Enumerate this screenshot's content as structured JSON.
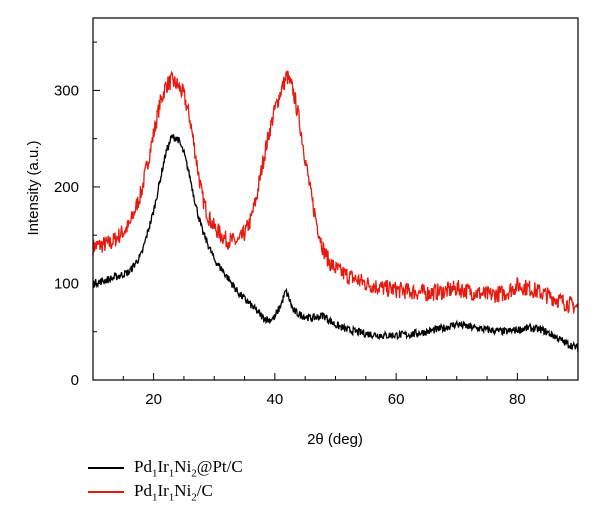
{
  "chart_data": {
    "type": "line",
    "title": "",
    "xlabel": "2θ (deg)",
    "ylabel": "Intensity (a.u.)",
    "xlim": [
      10,
      90
    ],
    "ylim": [
      0,
      375
    ],
    "xticks": [
      20,
      40,
      60,
      80
    ],
    "yticks": [
      0,
      100,
      200,
      300
    ],
    "grid": false,
    "legend_position": "bottom-left, below plot",
    "series": [
      {
        "name": "Pd1Ir1Ni2@Pt/C",
        "name_parts": [
          [
            "Pd",
            "1"
          ],
          [
            "Ir",
            "1"
          ],
          [
            "Ni",
            "2"
          ],
          [
            "@Pt/C",
            ""
          ]
        ],
        "color": "#000000",
        "x": [
          10,
          13,
          16,
          18,
          20,
          21,
          22,
          23,
          24,
          25,
          26,
          27,
          28,
          30,
          32,
          34,
          36,
          38,
          39,
          40,
          41,
          41.8,
          42.5,
          43,
          44,
          45,
          46,
          47,
          48,
          49,
          50,
          52,
          55,
          58,
          62,
          65,
          68,
          70,
          72,
          75,
          78,
          80,
          82,
          84,
          86,
          88,
          90
        ],
        "y": [
          100,
          105,
          112,
          130,
          175,
          205,
          235,
          252,
          250,
          235,
          210,
          180,
          155,
          125,
          108,
          90,
          78,
          65,
          62,
          65,
          78,
          92,
          82,
          72,
          68,
          66,
          64,
          65,
          67,
          62,
          57,
          52,
          48,
          46,
          47,
          50,
          54,
          58,
          55,
          52,
          50,
          52,
          54,
          52,
          46,
          38,
          33
        ]
      },
      {
        "name": "Pd1Ir1Ni2/C",
        "name_parts": [
          [
            "Pd",
            "1"
          ],
          [
            "Ir",
            "1"
          ],
          [
            "Ni",
            "2"
          ],
          [
            "/C",
            ""
          ]
        ],
        "color": "#e8190f",
        "x": [
          10,
          13,
          16,
          18,
          20,
          21,
          22,
          23,
          24,
          25,
          26,
          27,
          28,
          29,
          30,
          32,
          34,
          35,
          36,
          37,
          38,
          39,
          40,
          41,
          42,
          43,
          44,
          45,
          46,
          47,
          48,
          49,
          50,
          52,
          55,
          58,
          62,
          65,
          68,
          70,
          72,
          75,
          78,
          80,
          82,
          84,
          86,
          88,
          90
        ],
        "y": [
          138,
          142,
          160,
          195,
          255,
          285,
          305,
          310,
          305,
          295,
          270,
          230,
          190,
          170,
          158,
          145,
          143,
          152,
          165,
          190,
          225,
          255,
          280,
          300,
          315,
          300,
          270,
          230,
          190,
          160,
          135,
          122,
          115,
          108,
          100,
          95,
          92,
          90,
          92,
          95,
          92,
          88,
          90,
          98,
          95,
          90,
          85,
          80,
          75
        ]
      }
    ]
  }
}
